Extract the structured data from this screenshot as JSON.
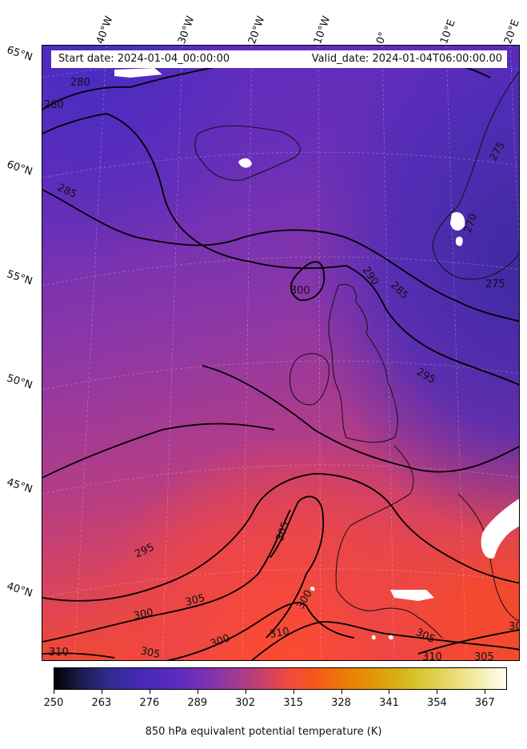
{
  "map": {
    "header": {
      "start_date": "Start date: 2024-01-04_00:00:00",
      "valid_date": "Valid_date: 2024-01-04T06:00:00.00"
    },
    "longitude_labels": [
      "40°W",
      "30°W",
      "20°W",
      "10°W",
      "0°",
      "10°E",
      "20°E"
    ],
    "latitude_labels": [
      "65°N",
      "60°N",
      "55°N",
      "50°N",
      "45°N",
      "40°N"
    ],
    "contour_labels": [
      "280",
      "280",
      "285",
      "300",
      "290",
      "285",
      "295",
      "275",
      "270",
      "275",
      "305",
      "295",
      "300",
      "305",
      "300",
      "300",
      "305",
      "310",
      "310",
      "305",
      "310",
      "305",
      "30"
    ],
    "colors": {
      "cold": "#4a27b8",
      "mid": "#8b38a8",
      "warm": "#f0483c",
      "contour": "#000000",
      "land_outline": "#111111"
    }
  },
  "colorbar": {
    "ticks": [
      "250",
      "263",
      "276",
      "289",
      "302",
      "315",
      "328",
      "341",
      "354",
      "367"
    ],
    "label": "850 hPa equivalent potential temperature (K)",
    "range": [
      250,
      373
    ]
  }
}
